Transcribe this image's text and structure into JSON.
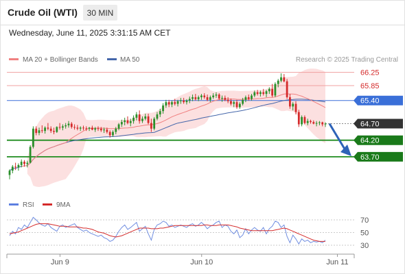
{
  "header": {
    "title": "Crude Oil (WTI)",
    "timeframe": "30 MIN",
    "timestamp": "Wednesday, June 11, 2025 3:31:15 AM CET"
  },
  "legend": {
    "ma20_label": "MA 20 + Bollinger Bands",
    "ma50_label": "MA 50",
    "copyright": "Research © 2025 Trading Central",
    "rsi_label": "RSI",
    "rsi_ma_label": "9MA"
  },
  "colors": {
    "bull": "#2a8f2a",
    "bear": "#d42a2a",
    "ma20": "#f08080",
    "ma50": "#4466aa",
    "bands": "#fbdada",
    "support": "#1e8c1e",
    "resistance": "#f0a0a0",
    "pivot": "#3a6fd8",
    "last": "#333333"
  },
  "levels": [
    {
      "value": 66.25,
      "label": "66.25",
      "kind": "resistance"
    },
    {
      "value": 65.85,
      "label": "65.85",
      "kind": "resistance"
    },
    {
      "value": 65.4,
      "label": "65.40",
      "kind": "pivot"
    },
    {
      "value": 64.7,
      "label": "64.70",
      "kind": "last"
    },
    {
      "value": 64.2,
      "label": "64.20",
      "kind": "support"
    },
    {
      "value": 63.7,
      "label": "63.70",
      "kind": "support"
    }
  ],
  "chart_data": [
    {
      "type": "candlestick",
      "title": "Crude Oil (WTI) 30 MIN",
      "x_tick_labels": [
        "Jun 9",
        "Jun 10",
        "Jun 11"
      ],
      "x_tick_index": [
        18,
        66,
        112
      ],
      "ylim": [
        62.6,
        66.45
      ],
      "series": [
        {
          "name": "MA 20",
          "kind": "line"
        },
        {
          "name": "MA 50",
          "kind": "line"
        },
        {
          "name": "Bollinger Bands",
          "kind": "band"
        }
      ],
      "ohlc": [
        [
          63.15,
          63.32,
          63.02,
          63.28
        ],
        [
          63.28,
          63.45,
          63.2,
          63.4
        ],
        [
          63.4,
          63.52,
          63.3,
          63.38
        ],
        [
          63.38,
          63.5,
          63.28,
          63.45
        ],
        [
          63.45,
          63.62,
          63.38,
          63.55
        ],
        [
          63.55,
          63.6,
          63.4,
          63.48
        ],
        [
          63.48,
          63.58,
          63.38,
          63.52
        ],
        [
          63.52,
          64.05,
          63.5,
          64.0
        ],
        [
          64.0,
          64.62,
          63.95,
          64.55
        ],
        [
          64.55,
          64.62,
          64.35,
          64.42
        ],
        [
          64.42,
          64.58,
          64.35,
          64.5
        ],
        [
          64.5,
          64.65,
          64.42,
          64.48
        ],
        [
          64.48,
          64.62,
          64.4,
          64.58
        ],
        [
          64.58,
          64.72,
          64.5,
          64.55
        ],
        [
          64.55,
          64.62,
          64.42,
          64.48
        ],
        [
          64.48,
          64.58,
          64.38,
          64.45
        ],
        [
          64.45,
          64.62,
          64.42,
          64.6
        ],
        [
          64.6,
          64.72,
          64.52,
          64.58
        ],
        [
          64.58,
          64.68,
          64.5,
          64.62
        ],
        [
          64.62,
          64.72,
          64.55,
          64.65
        ],
        [
          64.65,
          64.78,
          64.58,
          64.7
        ],
        [
          64.7,
          64.75,
          64.55,
          64.6
        ],
        [
          64.6,
          64.68,
          64.52,
          64.58
        ],
        [
          64.58,
          64.66,
          64.5,
          64.55
        ],
        [
          64.55,
          64.62,
          64.48,
          64.58
        ],
        [
          64.58,
          64.64,
          64.5,
          64.56
        ],
        [
          64.56,
          64.62,
          64.48,
          64.55
        ],
        [
          64.55,
          64.6,
          64.48,
          64.58
        ],
        [
          64.58,
          64.64,
          64.5,
          64.52
        ],
        [
          64.52,
          64.6,
          64.45,
          64.56
        ],
        [
          64.56,
          64.62,
          64.48,
          64.55
        ],
        [
          64.55,
          64.6,
          64.45,
          64.5
        ],
        [
          64.5,
          64.58,
          64.42,
          64.52
        ],
        [
          64.52,
          64.58,
          64.4,
          64.45
        ],
        [
          64.45,
          64.5,
          64.28,
          64.35
        ],
        [
          64.35,
          64.5,
          64.3,
          64.45
        ],
        [
          64.45,
          64.6,
          64.38,
          64.55
        ],
        [
          64.55,
          64.72,
          64.5,
          64.68
        ],
        [
          64.68,
          64.82,
          64.6,
          64.75
        ],
        [
          64.75,
          64.88,
          64.65,
          64.8
        ],
        [
          64.8,
          64.92,
          64.68,
          64.72
        ],
        [
          64.72,
          64.85,
          64.62,
          64.78
        ],
        [
          64.78,
          64.95,
          64.7,
          64.88
        ],
        [
          64.88,
          65.05,
          64.8,
          64.98
        ],
        [
          64.98,
          65.1,
          64.7,
          64.78
        ],
        [
          64.78,
          64.92,
          64.72,
          64.85
        ],
        [
          64.85,
          65.0,
          64.8,
          64.92
        ],
        [
          64.92,
          65.0,
          64.68,
          64.72
        ],
        [
          64.72,
          64.85,
          64.45,
          64.55
        ],
        [
          64.55,
          64.9,
          64.5,
          64.85
        ],
        [
          64.85,
          65.05,
          64.8,
          64.98
        ],
        [
          64.98,
          65.15,
          64.9,
          65.08
        ],
        [
          65.08,
          65.32,
          65.0,
          65.25
        ],
        [
          65.25,
          65.42,
          65.18,
          65.35
        ],
        [
          65.35,
          65.42,
          65.2,
          65.28
        ],
        [
          65.28,
          65.4,
          65.2,
          65.35
        ],
        [
          65.35,
          65.45,
          65.25,
          65.3
        ],
        [
          65.3,
          65.42,
          65.22,
          65.38
        ],
        [
          65.38,
          65.48,
          65.3,
          65.4
        ],
        [
          65.4,
          65.48,
          65.3,
          65.35
        ],
        [
          65.35,
          65.44,
          65.28,
          65.4
        ],
        [
          65.4,
          65.52,
          65.32,
          65.45
        ],
        [
          65.45,
          65.58,
          65.38,
          65.5
        ],
        [
          65.5,
          65.6,
          65.4,
          65.44
        ],
        [
          65.44,
          65.55,
          65.38,
          65.5
        ],
        [
          65.5,
          65.6,
          65.42,
          65.55
        ],
        [
          65.55,
          65.62,
          65.45,
          65.5
        ],
        [
          65.5,
          65.58,
          65.38,
          65.42
        ],
        [
          65.42,
          65.55,
          65.35,
          65.5
        ],
        [
          65.5,
          65.62,
          65.45,
          65.55
        ],
        [
          65.55,
          65.65,
          65.48,
          65.58
        ],
        [
          65.58,
          65.62,
          65.42,
          65.46
        ],
        [
          65.46,
          65.55,
          65.36,
          65.48
        ],
        [
          65.48,
          65.55,
          65.38,
          65.42
        ],
        [
          65.42,
          65.5,
          65.32,
          65.38
        ],
        [
          65.38,
          65.46,
          65.25,
          65.3
        ],
        [
          65.3,
          65.4,
          65.2,
          65.35
        ],
        [
          65.35,
          65.42,
          65.15,
          65.2
        ],
        [
          65.2,
          65.35,
          65.15,
          65.3
        ],
        [
          65.3,
          65.48,
          65.25,
          65.42
        ],
        [
          65.42,
          65.55,
          65.35,
          65.5
        ],
        [
          65.5,
          65.58,
          65.4,
          65.45
        ],
        [
          65.45,
          65.6,
          65.4,
          65.55
        ],
        [
          65.55,
          65.7,
          65.5,
          65.65
        ],
        [
          65.65,
          65.72,
          65.55,
          65.6
        ],
        [
          65.6,
          65.7,
          65.52,
          65.65
        ],
        [
          65.65,
          65.75,
          65.55,
          65.6
        ],
        [
          65.6,
          65.72,
          65.5,
          65.68
        ],
        [
          65.68,
          65.8,
          65.6,
          65.75
        ],
        [
          65.75,
          65.9,
          65.5,
          65.55
        ],
        [
          65.55,
          65.95,
          65.5,
          65.9
        ],
        [
          65.9,
          66.05,
          65.8,
          66.0
        ],
        [
          66.0,
          66.22,
          65.95,
          66.1
        ],
        [
          66.1,
          66.2,
          65.95,
          65.98
        ],
        [
          65.98,
          66.05,
          65.45,
          65.5
        ],
        [
          65.5,
          65.6,
          65.15,
          65.22
        ],
        [
          65.22,
          65.35,
          65.1,
          65.3
        ],
        [
          65.3,
          65.38,
          64.98,
          65.05
        ],
        [
          65.05,
          65.12,
          64.6,
          64.68
        ],
        [
          64.68,
          64.95,
          64.62,
          64.9
        ],
        [
          64.9,
          64.95,
          64.68,
          64.72
        ],
        [
          64.72,
          64.85,
          64.65,
          64.78
        ],
        [
          64.78,
          64.82,
          64.7,
          64.75
        ],
        [
          64.75,
          64.8,
          64.68,
          64.7
        ],
        [
          64.7,
          64.78,
          64.62,
          64.72
        ],
        [
          64.72,
          64.78,
          64.65,
          64.74
        ],
        [
          64.74,
          64.76,
          64.62,
          64.68
        ],
        [
          64.68,
          64.74,
          64.6,
          64.7
        ]
      ],
      "rsi": {
        "ticks": [
          70,
          50,
          30
        ],
        "ylim": [
          20,
          80
        ],
        "rsi": [
          45,
          52,
          48,
          58,
          55,
          62,
          58,
          66,
          74,
          70,
          65,
          62,
          60,
          64,
          58,
          55,
          52,
          60,
          62,
          58,
          60,
          62,
          64,
          58,
          55,
          52,
          54,
          50,
          48,
          46,
          44,
          46,
          42,
          40,
          36,
          38,
          44,
          52,
          58,
          62,
          55,
          58,
          62,
          66,
          52,
          56,
          60,
          48,
          38,
          55,
          62,
          64,
          68,
          66,
          60,
          62,
          58,
          60,
          62,
          60,
          58,
          62,
          64,
          60,
          62,
          66,
          62,
          56,
          60,
          62,
          66,
          68,
          58,
          62,
          60,
          52,
          48,
          54,
          42,
          46,
          56,
          48,
          54,
          58,
          54,
          52,
          58,
          48,
          56,
          60,
          68,
          66,
          58,
          62,
          44,
          34,
          46,
          40,
          32,
          40,
          36,
          38,
          34,
          36,
          35,
          36,
          34,
          38
        ],
        "ma": [
          48,
          49,
          50,
          51,
          53,
          55,
          57,
          59,
          61,
          63,
          64,
          64,
          64,
          64,
          63,
          62,
          61,
          60,
          60,
          60,
          59,
          59,
          59,
          59,
          58,
          57,
          57,
          56,
          55,
          53,
          51,
          50,
          49,
          47,
          45,
          44,
          43,
          44,
          45,
          47,
          49,
          51,
          53,
          55,
          57,
          57,
          57,
          57,
          56,
          56,
          56,
          57,
          57,
          58,
          59,
          60,
          61,
          61,
          61,
          61,
          61,
          61,
          61,
          61,
          61,
          61,
          62,
          62,
          61,
          61,
          61,
          62,
          62,
          62,
          62,
          61,
          60,
          59,
          57,
          56,
          55,
          54,
          53,
          53,
          53,
          53,
          53,
          53,
          53,
          53,
          54,
          55,
          56,
          57,
          56,
          54,
          52,
          50,
          48,
          46,
          44,
          42,
          40,
          38,
          37,
          36,
          36,
          36
        ]
      }
    }
  ]
}
